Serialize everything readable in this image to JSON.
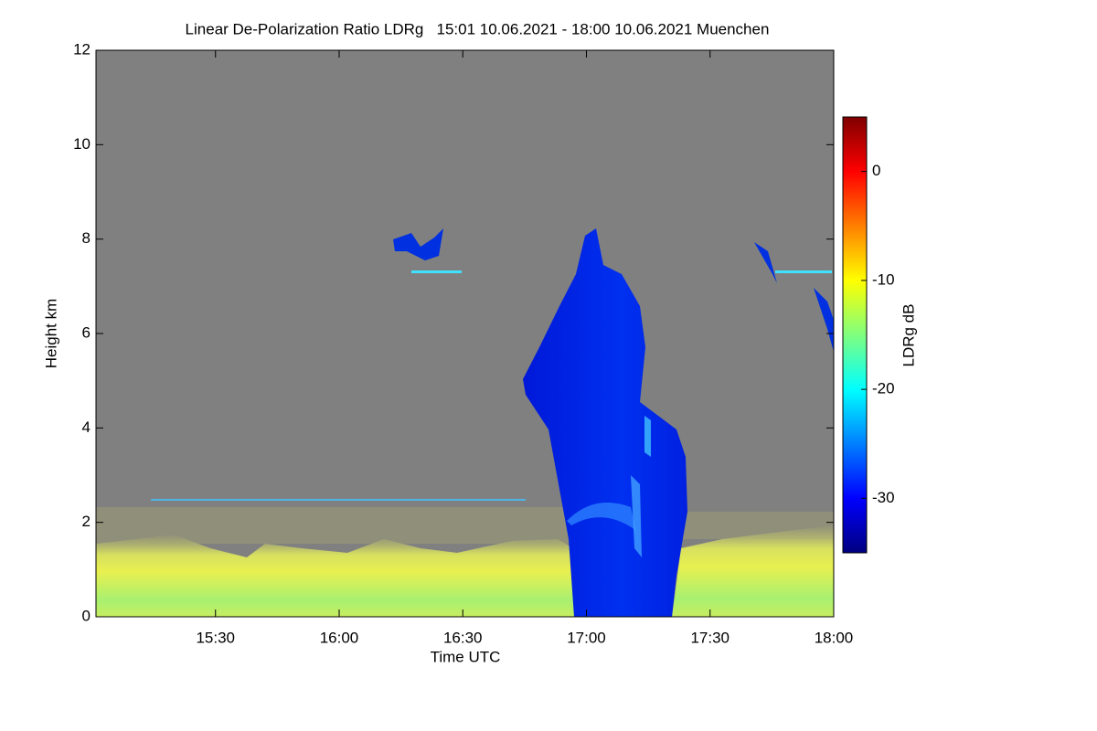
{
  "chart_data": {
    "type": "heatmap",
    "title": "Linear De-Polarization Ratio LDRg   15:01 10.06.2021 - 18:00 10.06.2021 Muenchen",
    "x_label": "Time UTC",
    "y_label": "Height km",
    "xlim": [
      901,
      1080
    ],
    "xticks": [
      {
        "value": 930,
        "label": "15:30"
      },
      {
        "value": 960,
        "label": "16:00"
      },
      {
        "value": 990,
        "label": "16:30"
      },
      {
        "value": 1020,
        "label": "17:00"
      },
      {
        "value": 1050,
        "label": "17:30"
      },
      {
        "value": 1080,
        "label": "18:00"
      }
    ],
    "ylim": [
      0,
      12
    ],
    "yticks": [
      0,
      2,
      4,
      6,
      8,
      10,
      12
    ],
    "colorbar": {
      "label": "LDRg dB",
      "colormap": [
        "#00007f",
        "#0000ff",
        "#007fff",
        "#00ffff",
        "#7fff7f",
        "#ffff00",
        "#ff7f00",
        "#ff0000",
        "#7f0000"
      ],
      "clim": [
        -35,
        5
      ],
      "ticks": [
        0,
        -10,
        -20,
        -30
      ]
    }
  }
}
